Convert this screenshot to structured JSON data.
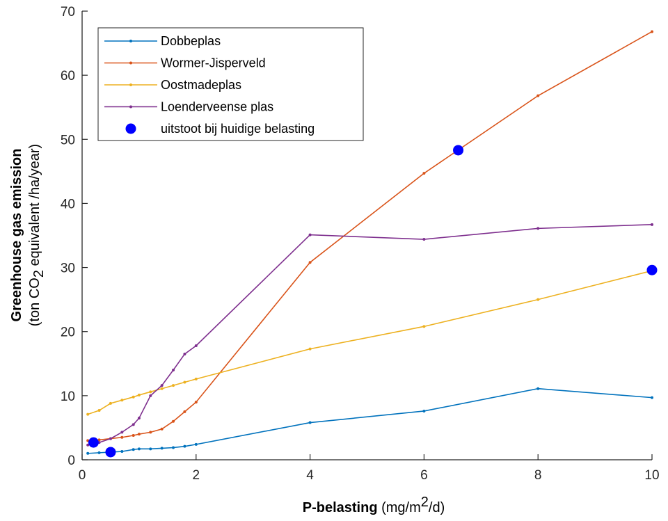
{
  "colors": {
    "Dobbeplas": "#0072BD",
    "Wormer-Jisperveld": "#D95319",
    "Oostmadeplas": "#EDB120",
    "Loenderveense plas": "#7E2F8E",
    "marker": "#0000FF",
    "axis": "#262626"
  },
  "chart_data": {
    "type": "line",
    "xlabel": {
      "bold": "P-belasting",
      "pre": "(mg/m",
      "sup": "2",
      "post": "/d)"
    },
    "ylabel": {
      "bold": "Greenhouse gas emission",
      "pre": "(ton CO",
      "sub": "2",
      "post": " equivalent /ha/year)"
    },
    "xlim": [
      0,
      10
    ],
    "ylim": [
      0,
      70
    ],
    "xticks": [
      0,
      2,
      4,
      6,
      8,
      10
    ],
    "yticks": [
      0,
      10,
      20,
      30,
      40,
      50,
      60,
      70
    ],
    "grid": false,
    "legend_placement": "top-left",
    "series": [
      {
        "name": "Dobbeplas",
        "x": [
          0.1,
          0.3,
          0.5,
          0.7,
          0.9,
          1.0,
          1.2,
          1.4,
          1.6,
          1.8,
          2,
          4,
          6,
          8,
          10
        ],
        "y": [
          1.0,
          1.1,
          1.2,
          1.3,
          1.6,
          1.7,
          1.7,
          1.8,
          1.9,
          2.1,
          2.4,
          5.8,
          7.6,
          11.1,
          9.7
        ]
      },
      {
        "name": "Wormer-Jisperveld",
        "x": [
          0.1,
          0.3,
          0.5,
          0.7,
          0.9,
          1.0,
          1.2,
          1.4,
          1.6,
          1.8,
          2,
          4,
          6,
          8,
          10
        ],
        "y": [
          3.0,
          3.1,
          3.3,
          3.5,
          3.8,
          4.0,
          4.3,
          4.8,
          6.0,
          7.5,
          9.0,
          30.8,
          44.7,
          56.8,
          66.8
        ]
      },
      {
        "name": "Oostmadeplas",
        "x": [
          0.1,
          0.3,
          0.5,
          0.7,
          0.9,
          1.0,
          1.2,
          1.4,
          1.6,
          1.8,
          2,
          4,
          6,
          8,
          10
        ],
        "y": [
          7.1,
          7.7,
          8.8,
          9.3,
          9.8,
          10.1,
          10.6,
          11.1,
          11.6,
          12.1,
          12.6,
          17.3,
          20.8,
          25.0,
          29.5
        ]
      },
      {
        "name": "Loenderveense plas",
        "x": [
          0.1,
          0.3,
          0.5,
          0.7,
          0.9,
          1.0,
          1.2,
          1.4,
          1.6,
          1.8,
          2,
          4,
          6,
          8,
          10
        ],
        "y": [
          2.3,
          2.7,
          3.3,
          4.3,
          5.5,
          6.5,
          10.0,
          11.6,
          14.0,
          16.5,
          17.8,
          35.1,
          34.4,
          36.1,
          36.7
        ]
      },
      {
        "name": "uitstoot bij huidige belasting",
        "type": "scatter",
        "x": [
          0.2,
          0.5,
          6.6,
          10
        ],
        "y": [
          2.7,
          1.2,
          48.3,
          29.6
        ]
      }
    ]
  }
}
